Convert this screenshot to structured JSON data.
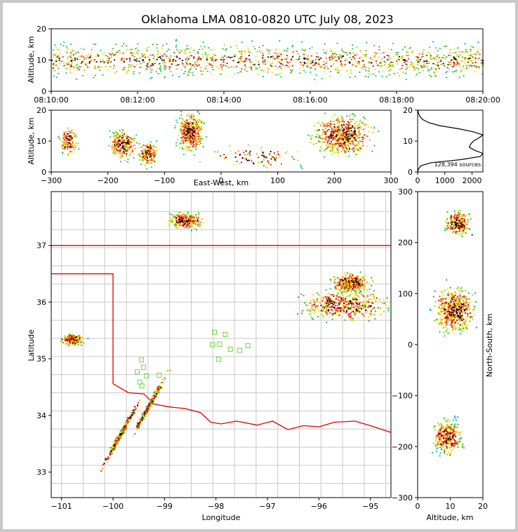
{
  "chart_data": {
    "type": "scatter",
    "title": "Oklahoma LMA 0810-0820 UTC July 08, 2023",
    "source_count_label": "128,394 sources",
    "panels": {
      "time_altitude": {
        "ylabel": "Altitude, km",
        "x_range": [
          "08:10:00",
          "08:20:00"
        ],
        "x_ticks": [
          "08:10:00",
          "08:12:00",
          "08:14:00",
          "08:16:00",
          "08:18:00",
          "08:20:00"
        ],
        "ylim": [
          0,
          20
        ],
        "y_ticks": [
          "0",
          "10",
          "20"
        ]
      },
      "ew_altitude": {
        "xlabel": "East-West, km",
        "ylabel": "Altitude, km",
        "xlim": [
          -300,
          300
        ],
        "ylim": [
          0,
          20
        ],
        "x_ticks": [
          "−300",
          "−200",
          "−100",
          "0",
          "100",
          "200",
          "300"
        ],
        "y_ticks": [
          "0",
          "10",
          "20"
        ]
      },
      "histogram": {
        "xlim": [
          0,
          2400
        ],
        "ylim": [
          0,
          20
        ],
        "x_ticks": [
          "0",
          "1000",
          "2000"
        ],
        "y_ticks": [
          "0",
          "10",
          "20"
        ],
        "profile": [
          [
            0,
            0
          ],
          [
            30,
            1
          ],
          [
            120,
            2
          ],
          [
            500,
            3
          ],
          [
            1600,
            4
          ],
          [
            2300,
            5
          ],
          [
            2400,
            6
          ],
          [
            2100,
            7
          ],
          [
            1900,
            8
          ],
          [
            1950,
            9
          ],
          [
            2050,
            10
          ],
          [
            2250,
            11
          ],
          [
            2400,
            12
          ],
          [
            2050,
            13
          ],
          [
            1500,
            14
          ],
          [
            800,
            15
          ],
          [
            400,
            16
          ],
          [
            180,
            17
          ],
          [
            80,
            18
          ],
          [
            30,
            19
          ],
          [
            10,
            20
          ]
        ]
      },
      "plan_view": {
        "xlabel": "Longitude",
        "ylabel": "Latitude",
        "xlim": [
          -101.2,
          -94.6
        ],
        "ylim": [
          32.55,
          37.95
        ],
        "x_ticks": [
          "−101",
          "−100",
          "−99",
          "−98",
          "−97",
          "−96",
          "−95"
        ],
        "y_ticks": [
          "33",
          "34",
          "35",
          "36",
          "37"
        ],
        "stations": [
          [
            -98.03,
            35.47
          ],
          [
            -97.82,
            35.43
          ],
          [
            -98.07,
            35.25
          ],
          [
            -97.93,
            35.26
          ],
          [
            -97.72,
            35.17
          ],
          [
            -97.54,
            35.15
          ],
          [
            -97.38,
            35.23
          ],
          [
            -97.95,
            34.99
          ],
          [
            -99.53,
            34.77
          ],
          [
            -99.45,
            34.98
          ],
          [
            -99.41,
            34.85
          ],
          [
            -99.35,
            34.7
          ],
          [
            -99.1,
            34.71
          ],
          [
            -99.48,
            34.59
          ],
          [
            -99.44,
            34.52
          ]
        ],
        "storms": [
          {
            "lon": -98.6,
            "lat": 37.45,
            "size": 0.25
          },
          {
            "lon": -95.4,
            "lat": 36.35,
            "size": 0.3
          },
          {
            "lon": -95.5,
            "lat": 35.95,
            "size": 0.45
          },
          {
            "lon": -100.8,
            "lat": 35.35,
            "size": 0.18
          },
          {
            "lon": -99.85,
            "lat": 33.7,
            "size": 0.3
          },
          {
            "lon": -99.3,
            "lat": 34.2,
            "size": 0.25
          }
        ]
      },
      "ns_altitude": {
        "xlabel": "Altitude, km",
        "ylabel": "North-South, km",
        "xlim": [
          0,
          20
        ],
        "ylim": [
          -300,
          300
        ],
        "x_ticks": [
          "0",
          "10",
          "20"
        ],
        "y_ticks": [
          "300",
          "200",
          "100",
          "0",
          "−100",
          "−200",
          "−300"
        ]
      }
    }
  }
}
